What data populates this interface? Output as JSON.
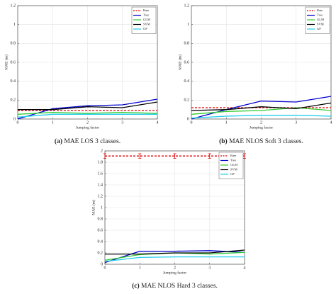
{
  "chart_data": [
    {
      "type": "line",
      "caption_label": "(a)",
      "caption": "MAE LOS 3 classes.",
      "xlabel": "Jumping factor",
      "ylabel": "MAE (m)",
      "x": [
        0,
        1,
        2,
        3,
        4
      ],
      "xlim": [
        0,
        4
      ],
      "xticks": [
        0,
        1,
        2,
        3,
        4
      ],
      "ylim": [
        0,
        1.2
      ],
      "yticks": [
        0,
        0.2,
        0.4,
        0.6,
        0.8,
        1,
        1.2
      ],
      "grid": true,
      "legend": "upper right",
      "series": [
        {
          "name": "Rate",
          "color": "#e00000",
          "line_style": "dashed",
          "values": [
            0.09,
            0.09,
            0.09,
            0.09,
            0.09
          ]
        },
        {
          "name": "Tree",
          "color": "#0000cc",
          "line_style": "solid",
          "values": [
            0,
            0.11,
            0.14,
            0.15,
            0.21
          ]
        },
        {
          "name": "GLM",
          "color": "#33cc33",
          "line_style": "solid",
          "values": [
            0.05,
            0.07,
            0.06,
            0.07,
            0.06
          ]
        },
        {
          "name": "SVM",
          "color": "#000000",
          "line_style": "solid",
          "values": [
            0.1,
            0.1,
            0.13,
            0.12,
            0.18
          ]
        },
        {
          "name": "GP",
          "color": "#22ccee",
          "line_style": "solid",
          "values": [
            0.02,
            0.05,
            0.05,
            0.05,
            0.05
          ]
        }
      ]
    },
    {
      "type": "line",
      "caption_label": "(b)",
      "caption": "MAE NLOS Soft 3 classes.",
      "xlabel": "Jumping factor",
      "ylabel": "MAE (m)",
      "x": [
        0,
        1,
        2,
        3,
        4
      ],
      "xlim": [
        0,
        4
      ],
      "xticks": [
        0,
        1,
        2,
        3,
        4
      ],
      "ylim": [
        0,
        1.2
      ],
      "yticks": [
        0,
        0.2,
        0.4,
        0.6,
        0.8,
        1,
        1.2
      ],
      "grid": true,
      "legend": "upper right",
      "series": [
        {
          "name": "Rate",
          "color": "#e00000",
          "line_style": "dashed",
          "values": [
            0.12,
            0.12,
            0.12,
            0.12,
            0.12
          ]
        },
        {
          "name": "Tree",
          "color": "#0000cc",
          "line_style": "solid",
          "values": [
            0,
            0.1,
            0.19,
            0.18,
            0.24
          ]
        },
        {
          "name": "GLM",
          "color": "#33cc33",
          "line_style": "solid",
          "values": [
            0.05,
            0.08,
            0.09,
            0.12,
            0.09
          ]
        },
        {
          "name": "SVM",
          "color": "#000000",
          "line_style": "solid",
          "values": [
            0.09,
            0.1,
            0.13,
            0.11,
            0.17
          ]
        },
        {
          "name": "GP",
          "color": "#22ccee",
          "line_style": "solid",
          "values": [
            0.01,
            0.03,
            0.04,
            0.04,
            0.03
          ]
        }
      ]
    },
    {
      "type": "line",
      "caption_label": "(c)",
      "caption": "MAE NLOS Hard 3 classes.",
      "xlabel": "Jumping factor",
      "ylabel": "MAE (m)",
      "x": [
        0,
        1,
        2,
        3,
        4
      ],
      "xlim": [
        0,
        4
      ],
      "xticks": [
        0,
        1,
        2,
        3,
        4
      ],
      "ylim": [
        0,
        2
      ],
      "yticks": [
        0,
        0.2,
        0.4,
        0.6,
        0.8,
        1,
        1.2,
        1.4,
        1.6,
        1.8,
        2
      ],
      "grid": true,
      "legend": "upper right",
      "series": [
        {
          "name": "Rate",
          "color": "#e00000",
          "line_style": "dashed",
          "values": [
            1.91,
            1.91,
            1.91,
            1.91,
            1.91
          ],
          "errors": [
            0.04,
            0.04,
            0.04,
            0.04,
            0.04
          ]
        },
        {
          "name": "Tree",
          "color": "#0000cc",
          "line_style": "solid",
          "values": [
            0.03,
            0.23,
            0.23,
            0.24,
            0.21
          ]
        },
        {
          "name": "GLM",
          "color": "#33cc33",
          "line_style": "solid",
          "values": [
            0.07,
            0.17,
            0.2,
            0.18,
            0.21
          ]
        },
        {
          "name": "SVM",
          "color": "#000000",
          "line_style": "solid",
          "values": [
            0.18,
            0.18,
            0.2,
            0.2,
            0.25
          ]
        },
        {
          "name": "GP",
          "color": "#22ccee",
          "line_style": "solid",
          "values": [
            0.05,
            0.12,
            0.13,
            0.13,
            0.13
          ]
        }
      ]
    }
  ]
}
